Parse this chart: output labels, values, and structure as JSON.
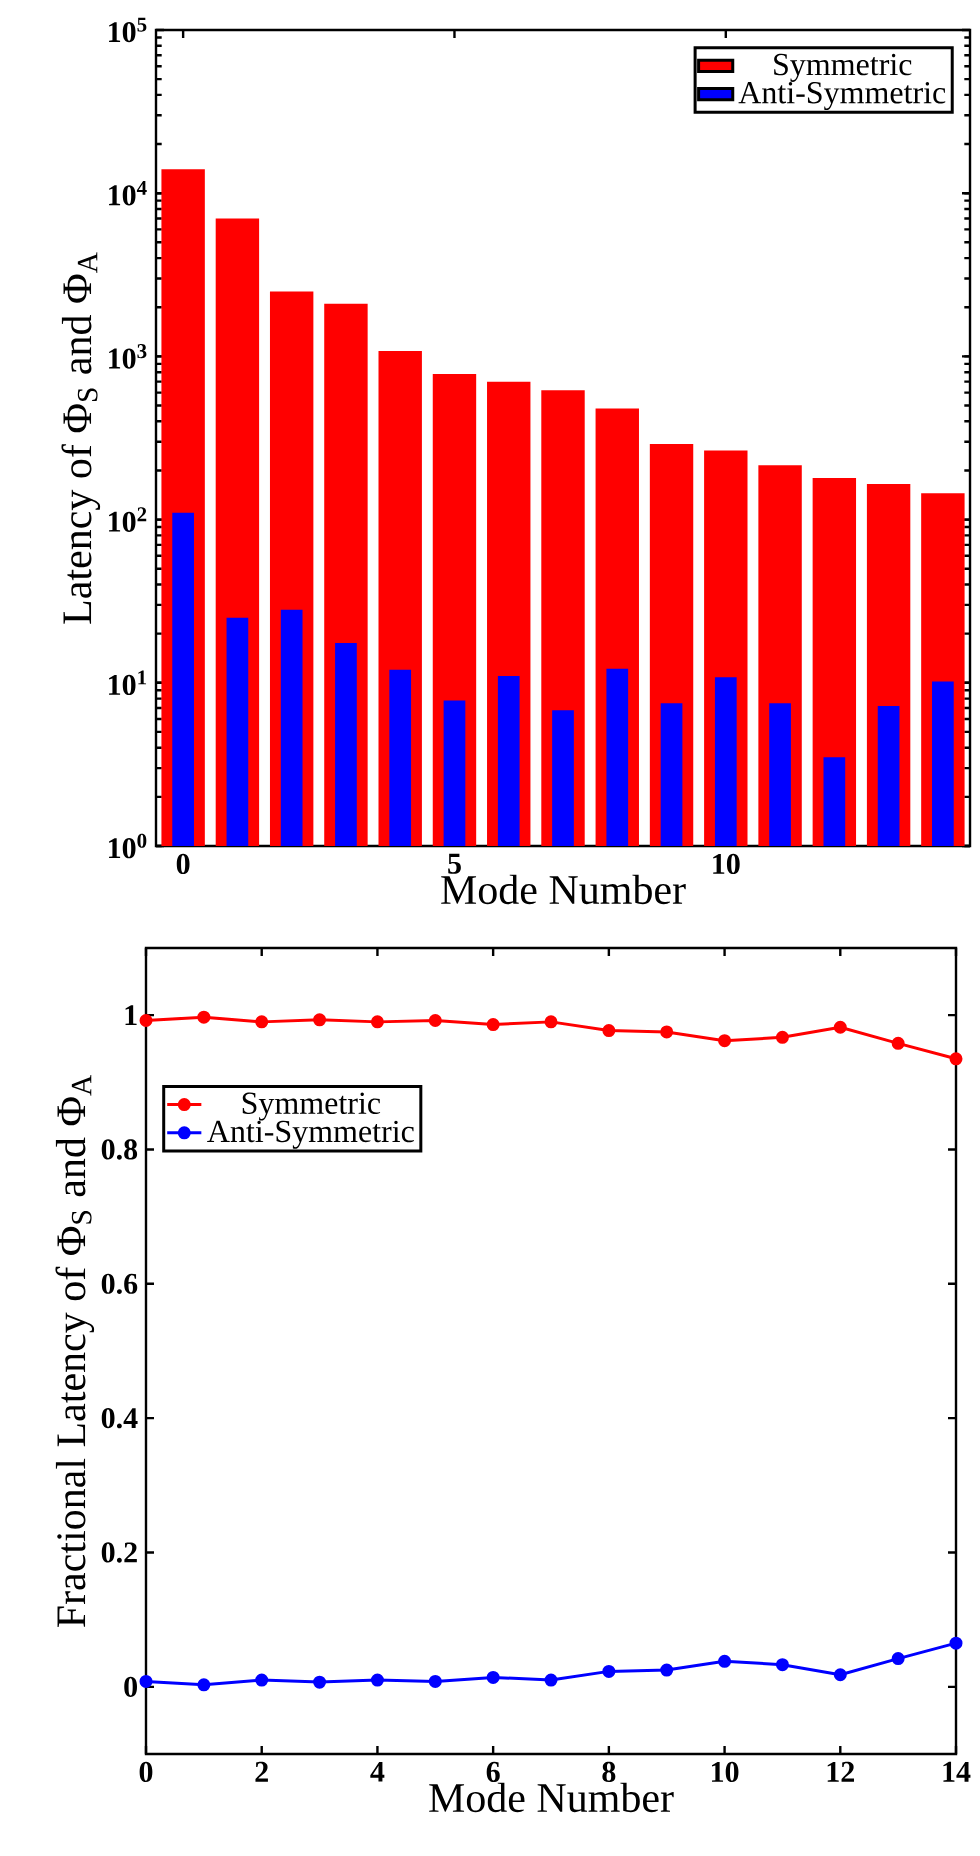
{
  "chart_data": [
    {
      "type": "bar",
      "xlabel": "Mode Number",
      "ylabel": "Latency of Φ$_{S}$ and Φ$_{A}$",
      "log": "y",
      "legend": "top right",
      "x": [
        0,
        1,
        2,
        3,
        4,
        5,
        6,
        7,
        8,
        9,
        10,
        11,
        12,
        13,
        14
      ],
      "xlim": [
        -0.5,
        14.5
      ],
      "xticks": [
        0,
        5,
        10
      ],
      "ylim": [
        1,
        100000
      ],
      "yticks": [
        {
          "value": 1,
          "label": "10$^{0}$"
        },
        {
          "value": 10,
          "label": "10$^{1}$"
        },
        {
          "value": 100,
          "label": "10$^{2}$"
        },
        {
          "value": 1000,
          "label": "10$^{3}$"
        },
        {
          "value": 10000,
          "label": "10$^{4}$"
        },
        {
          "value": 100000,
          "label": "10$^{5}$"
        }
      ],
      "series": [
        {
          "name": "Symmetric",
          "color": "#ff0000",
          "values": [
            14000,
            7000,
            2500,
            2100,
            1080,
            780,
            700,
            620,
            480,
            290,
            265,
            215,
            180,
            165,
            145
          ]
        },
        {
          "name": "Anti-Symmetric",
          "color": "#0000ff",
          "values": [
            110,
            25,
            28,
            17.5,
            12,
            7.8,
            11,
            6.8,
            12.2,
            7.5,
            10.8,
            7.5,
            3.5,
            7.2,
            10.2
          ]
        }
      ]
    },
    {
      "type": "line",
      "xlabel": "Mode Number",
      "ylabel": "Fractional Latency of Φ$_{S}$ and Φ$_{A}$",
      "legend": "top left",
      "marker": "circle",
      "line_style": "solid",
      "x": [
        0,
        1,
        2,
        3,
        4,
        5,
        6,
        7,
        8,
        9,
        10,
        11,
        12,
        13,
        14
      ],
      "xlim": [
        0,
        14
      ],
      "xticks": [
        0,
        2,
        4,
        6,
        8,
        10,
        12,
        14
      ],
      "ylim": [
        -0.1,
        1.1
      ],
      "yticks": [
        0,
        0.2,
        0.4,
        0.6,
        0.8,
        1
      ],
      "series": [
        {
          "name": "Symmetric",
          "color": "#ff0000",
          "values": [
            0.992,
            0.997,
            0.99,
            0.993,
            0.99,
            0.992,
            0.986,
            0.99,
            0.977,
            0.975,
            0.962,
            0.967,
            0.982,
            0.958,
            0.935
          ]
        },
        {
          "name": "Anti-Symmetric",
          "color": "#0000ff",
          "values": [
            0.008,
            0.003,
            0.01,
            0.007,
            0.01,
            0.008,
            0.014,
            0.01,
            0.023,
            0.025,
            0.038,
            0.033,
            0.018,
            0.042,
            0.065
          ]
        }
      ]
    }
  ]
}
